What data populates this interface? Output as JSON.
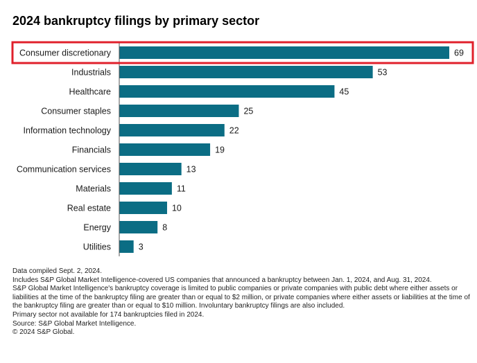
{
  "title": "2024 bankruptcy filings by primary sector",
  "chart_data": {
    "type": "bar",
    "orientation": "horizontal",
    "title": "2024 bankruptcy filings by primary sector",
    "categories": [
      "Consumer discretionary",
      "Industrials",
      "Healthcare",
      "Consumer staples",
      "Information technology",
      "Financials",
      "Communication services",
      "Materials",
      "Real estate",
      "Energy",
      "Utilities"
    ],
    "values": [
      69,
      53,
      45,
      25,
      22,
      19,
      13,
      11,
      10,
      8,
      3
    ],
    "xlim": [
      0,
      69
    ],
    "grid": false,
    "legend": "none",
    "data_labels": true,
    "highlighted_category": "Consumer discretionary"
  },
  "colors": {
    "bar": "#0b6d84",
    "highlight_box": "#e0202b",
    "axis_line": "#555555"
  },
  "footnotes": [
    "Data compiled Sept. 2, 2024.",
    "Includes S&P Global Market Intelligence-covered US companies that announced a bankruptcy between Jan. 1, 2024, and Aug. 31, 2024.",
    "S&P Global Market Intelligence's bankruptcy coverage is limited to public companies or private companies with public debt where either assets or liabilities at the time of the bankruptcy filing are greater than or equal to $2 million, or private companies where either assets or liabilities at the time of the bankruptcy filing are greater than or equal to $10 million. Involuntary bankruptcy filings are also included.",
    "Primary sector not available for 174 bankruptcies filed in 2024.",
    "Source: S&P Global Market Intelligence.",
    "© 2024 S&P Global."
  ]
}
